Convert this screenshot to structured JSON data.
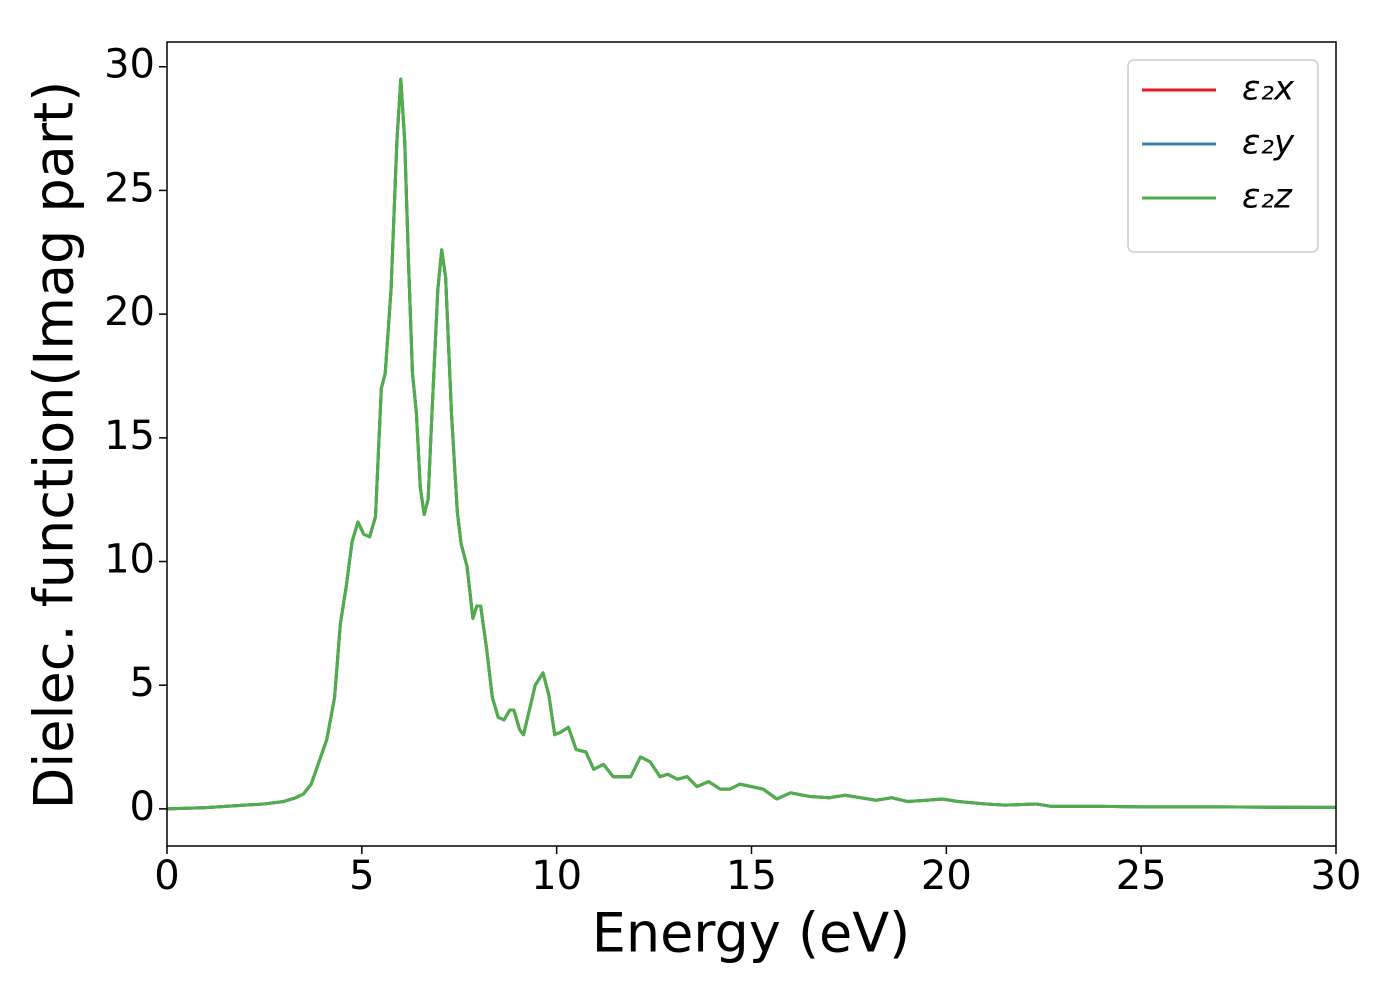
{
  "chart_data": {
    "type": "line",
    "xlabel": "Energy (eV)",
    "ylabel": "Dielec. function(Imag part)",
    "xlim": [
      0,
      30
    ],
    "ylim": [
      -1.5,
      31.0
    ],
    "xticks": [
      0,
      5,
      10,
      15,
      20,
      25,
      30
    ],
    "yticks": [
      0,
      5,
      10,
      15,
      20,
      25,
      30
    ],
    "legend": "upper right",
    "x": [
      0,
      1,
      2,
      2.5,
      3,
      3.3,
      3.5,
      3.7,
      3.9,
      4.1,
      4.3,
      4.45,
      4.6,
      4.75,
      4.9,
      5.05,
      5.2,
      5.35,
      5.5,
      5.6,
      5.75,
      5.9,
      6.0,
      6.1,
      6.2,
      6.3,
      6.4,
      6.5,
      6.6,
      6.7,
      6.8,
      6.95,
      7.05,
      7.15,
      7.3,
      7.45,
      7.55,
      7.7,
      7.85,
      7.95,
      8.05,
      8.2,
      8.35,
      8.5,
      8.65,
      8.8,
      8.9,
      9.05,
      9.15,
      9.3,
      9.45,
      9.65,
      9.8,
      9.95,
      10.1,
      10.3,
      10.5,
      10.75,
      10.95,
      11.2,
      11.45,
      11.7,
      11.9,
      12.15,
      12.4,
      12.65,
      12.85,
      13.1,
      13.35,
      13.6,
      13.9,
      14.2,
      14.45,
      14.7,
      15.0,
      15.3,
      15.65,
      16.0,
      16.5,
      17.0,
      17.4,
      17.8,
      18.2,
      18.6,
      19.0,
      19.5,
      19.9,
      20.3,
      21,
      21.5,
      22.3,
      22.7,
      24,
      25,
      26,
      27,
      28,
      30
    ],
    "series": [
      {
        "name": "ε₂x",
        "color": "#e41a1c",
        "values": [
          0,
          0.05,
          0.15,
          0.2,
          0.3,
          0.45,
          0.6,
          1.0,
          1.9,
          2.8,
          4.5,
          7.5,
          9.0,
          10.8,
          11.6,
          11.1,
          11.0,
          11.8,
          17.0,
          17.6,
          21.0,
          27.0,
          29.5,
          27.0,
          22.0,
          17.6,
          16.0,
          13.0,
          11.9,
          12.5,
          16.0,
          21.0,
          22.6,
          21.5,
          16.0,
          12.0,
          10.7,
          9.8,
          7.7,
          8.2,
          8.2,
          6.5,
          4.5,
          3.7,
          3.6,
          4.0,
          4.0,
          3.2,
          3.0,
          4.0,
          5.0,
          5.5,
          4.6,
          3.0,
          3.1,
          3.3,
          2.4,
          2.3,
          1.6,
          1.8,
          1.3,
          1.3,
          1.3,
          2.1,
          1.9,
          1.3,
          1.4,
          1.2,
          1.3,
          0.9,
          1.1,
          0.8,
          0.8,
          1.0,
          0.9,
          0.8,
          0.4,
          0.65,
          0.5,
          0.45,
          0.55,
          0.45,
          0.35,
          0.45,
          0.3,
          0.35,
          0.4,
          0.3,
          0.2,
          0.15,
          0.2,
          0.1,
          0.1,
          0.08,
          0.08,
          0.08,
          0.07,
          0.06
        ]
      },
      {
        "name": "ε₂y",
        "color": "#377eb8",
        "values": [
          0,
          0.05,
          0.15,
          0.2,
          0.3,
          0.45,
          0.6,
          1.0,
          1.9,
          2.8,
          4.5,
          7.5,
          9.0,
          10.8,
          11.6,
          11.1,
          11.0,
          11.8,
          17.0,
          17.6,
          21.0,
          27.0,
          29.5,
          27.0,
          22.0,
          17.6,
          16.0,
          13.0,
          11.9,
          12.5,
          16.0,
          21.0,
          22.6,
          21.5,
          16.0,
          12.0,
          10.7,
          9.8,
          7.7,
          8.2,
          8.2,
          6.5,
          4.5,
          3.7,
          3.6,
          4.0,
          4.0,
          3.2,
          3.0,
          4.0,
          5.0,
          5.5,
          4.6,
          3.0,
          3.1,
          3.3,
          2.4,
          2.3,
          1.6,
          1.8,
          1.3,
          1.3,
          1.3,
          2.1,
          1.9,
          1.3,
          1.4,
          1.2,
          1.3,
          0.9,
          1.1,
          0.8,
          0.8,
          1.0,
          0.9,
          0.8,
          0.4,
          0.65,
          0.5,
          0.45,
          0.55,
          0.45,
          0.35,
          0.45,
          0.3,
          0.35,
          0.4,
          0.3,
          0.2,
          0.15,
          0.2,
          0.1,
          0.1,
          0.08,
          0.08,
          0.08,
          0.07,
          0.06
        ]
      },
      {
        "name": "ε₂z",
        "color": "#4daf4a",
        "values": [
          0,
          0.05,
          0.15,
          0.2,
          0.3,
          0.45,
          0.6,
          1.0,
          1.9,
          2.8,
          4.5,
          7.5,
          9.0,
          10.8,
          11.6,
          11.1,
          11.0,
          11.8,
          17.0,
          17.6,
          21.0,
          27.0,
          29.5,
          27.0,
          22.0,
          17.6,
          16.0,
          13.0,
          11.9,
          12.5,
          16.0,
          21.0,
          22.6,
          21.5,
          16.0,
          12.0,
          10.7,
          9.8,
          7.7,
          8.2,
          8.2,
          6.5,
          4.5,
          3.7,
          3.6,
          4.0,
          4.0,
          3.2,
          3.0,
          4.0,
          5.0,
          5.5,
          4.6,
          3.0,
          3.1,
          3.3,
          2.4,
          2.3,
          1.6,
          1.8,
          1.3,
          1.3,
          1.3,
          2.1,
          1.9,
          1.3,
          1.4,
          1.2,
          1.3,
          0.9,
          1.1,
          0.8,
          0.8,
          1.0,
          0.9,
          0.8,
          0.4,
          0.65,
          0.5,
          0.45,
          0.55,
          0.45,
          0.35,
          0.45,
          0.3,
          0.35,
          0.4,
          0.3,
          0.2,
          0.15,
          0.2,
          0.1,
          0.1,
          0.08,
          0.08,
          0.08,
          0.07,
          0.06
        ]
      }
    ]
  }
}
